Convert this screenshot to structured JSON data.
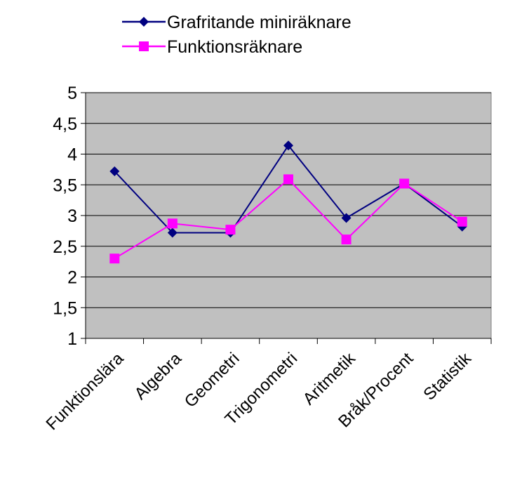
{
  "chart_data": {
    "type": "line",
    "title": "",
    "xlabel": "",
    "ylabel": "",
    "categories": [
      "Funktionslära",
      "Algebra",
      "Geometri",
      "Trigonometri",
      "Aritmetik",
      "Bråk/Procent",
      "Statistik"
    ],
    "series": [
      {
        "name": "Grafritande miniräknare",
        "color": "#000080",
        "marker": "diamond",
        "values": [
          3.72,
          2.72,
          2.72,
          4.14,
          2.96,
          3.52,
          2.82
        ]
      },
      {
        "name": "Funktionsräknare",
        "color": "#FF00FF",
        "marker": "square",
        "values": [
          2.3,
          2.87,
          2.77,
          3.59,
          2.61,
          3.52,
          2.9
        ]
      }
    ],
    "ylim": [
      1,
      5
    ],
    "yticks": [
      "1",
      "1,5",
      "2",
      "2,5",
      "3",
      "3,5",
      "4",
      "4,5",
      "5"
    ],
    "grid": true,
    "plot_background": "#C0C0C0",
    "legend_position": "top-center"
  }
}
